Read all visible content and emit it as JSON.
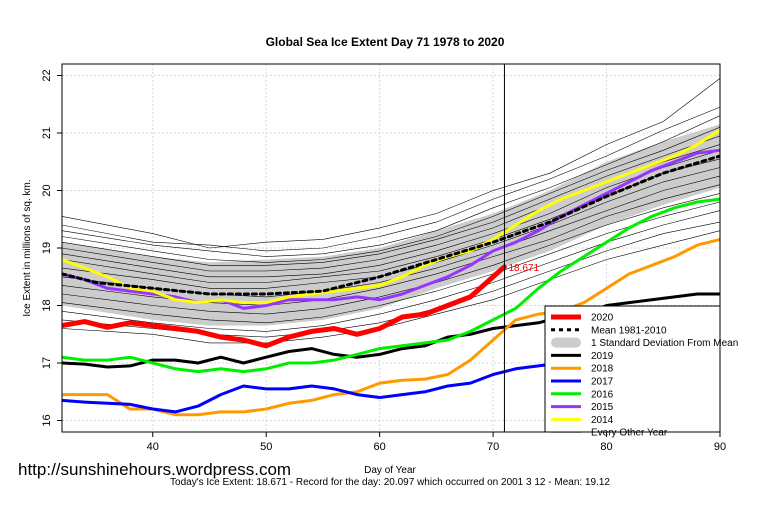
{
  "chart_data": {
    "type": "line",
    "title": "Global Sea Ice Extent Day 71 1978 to 2020",
    "xlabel": "Day of Year",
    "ylabel": "Ice Extent in millions of sq. km.",
    "xlim": [
      32,
      90
    ],
    "ylim": [
      15.8,
      22.2
    ],
    "x_ticks": [
      40,
      50,
      60,
      70,
      80,
      90
    ],
    "y_ticks": [
      16,
      17,
      18,
      19,
      20,
      21,
      22
    ],
    "grid": true,
    "legend_position": "bottom-right",
    "current_day": 71,
    "current_value_label": "18.671",
    "footer": "Today's Ice Extent: 18.671  - Record for the day: 20.097 which occurred on 2001 3 12  - Mean: 19.12",
    "watermark": "http://sunshinehours.wordpress.com",
    "std_band": {
      "name": "1 Standard Deviation From Mean",
      "x": [
        32,
        40,
        45,
        50,
        55,
        60,
        65,
        70,
        75,
        80,
        85,
        90
      ],
      "upper": [
        19.1,
        18.85,
        18.75,
        18.8,
        18.85,
        19.0,
        19.3,
        19.6,
        20.0,
        20.5,
        20.85,
        21.15
      ],
      "lower": [
        18.0,
        17.75,
        17.65,
        17.65,
        17.75,
        17.95,
        18.3,
        18.6,
        18.95,
        19.4,
        19.75,
        20.05
      ],
      "color": "#cccccc"
    },
    "series": [
      {
        "name": "2020",
        "color": "#ff0000",
        "width": 5,
        "x": [
          32,
          34,
          36,
          38,
          40,
          42,
          44,
          46,
          48,
          50,
          52,
          54,
          56,
          58,
          60,
          62,
          64,
          66,
          68,
          70,
          71
        ],
        "values": [
          17.65,
          17.72,
          17.62,
          17.7,
          17.65,
          17.6,
          17.55,
          17.45,
          17.4,
          17.3,
          17.45,
          17.55,
          17.6,
          17.5,
          17.6,
          17.8,
          17.85,
          18.0,
          18.15,
          18.5,
          18.671
        ]
      },
      {
        "name": "Mean 1981-2010",
        "color": "#000000",
        "width": 3,
        "dash": "4,4",
        "x": [
          32,
          35,
          40,
          45,
          50,
          55,
          60,
          65,
          70,
          75,
          80,
          85,
          90
        ],
        "values": [
          18.55,
          18.4,
          18.3,
          18.2,
          18.2,
          18.25,
          18.5,
          18.8,
          19.1,
          19.45,
          19.9,
          20.3,
          20.6
        ]
      },
      {
        "name": "2019",
        "color": "#000000",
        "width": 3,
        "x": [
          32,
          34,
          36,
          38,
          40,
          42,
          44,
          46,
          48,
          50,
          52,
          54,
          56,
          58,
          60,
          62,
          64,
          66,
          68,
          70,
          72,
          74,
          76,
          78,
          80,
          82,
          84,
          86,
          88,
          90
        ],
        "values": [
          17.0,
          16.98,
          16.93,
          16.95,
          17.05,
          17.05,
          17.0,
          17.1,
          17.0,
          17.1,
          17.2,
          17.25,
          17.15,
          17.1,
          17.15,
          17.25,
          17.3,
          17.45,
          17.5,
          17.6,
          17.65,
          17.7,
          17.8,
          17.85,
          18.0,
          18.05,
          18.1,
          18.15,
          18.2,
          18.2
        ]
      },
      {
        "name": "2018",
        "color": "#ff9900",
        "width": 3,
        "x": [
          32,
          34,
          36,
          38,
          40,
          42,
          44,
          46,
          48,
          50,
          52,
          54,
          56,
          58,
          60,
          62,
          64,
          66,
          68,
          70,
          72,
          74,
          76,
          78,
          80,
          82,
          84,
          86,
          88,
          90
        ],
        "values": [
          16.45,
          16.45,
          16.45,
          16.2,
          16.2,
          16.1,
          16.1,
          16.15,
          16.15,
          16.2,
          16.3,
          16.35,
          16.45,
          16.5,
          16.65,
          16.7,
          16.72,
          16.8,
          17.05,
          17.4,
          17.75,
          17.85,
          17.9,
          18.05,
          18.3,
          18.55,
          18.7,
          18.85,
          19.05,
          19.15
        ]
      },
      {
        "name": "2017",
        "color": "#0000ff",
        "width": 3,
        "x": [
          32,
          34,
          36,
          38,
          40,
          42,
          44,
          46,
          48,
          50,
          52,
          54,
          56,
          58,
          60,
          62,
          64,
          66,
          68,
          70,
          72,
          74,
          76,
          78,
          80,
          82,
          84,
          86,
          88,
          90
        ],
        "values": [
          16.35,
          16.32,
          16.3,
          16.28,
          16.2,
          16.15,
          16.25,
          16.45,
          16.6,
          16.55,
          16.55,
          16.6,
          16.55,
          16.45,
          16.4,
          16.45,
          16.5,
          16.6,
          16.65,
          16.8,
          16.9,
          16.95,
          17.0,
          17.05,
          17.1,
          17.2,
          17.35,
          17.5,
          17.65,
          17.75
        ]
      },
      {
        "name": "2016",
        "color": "#00ee00",
        "width": 3,
        "x": [
          32,
          34,
          36,
          38,
          40,
          42,
          44,
          46,
          48,
          50,
          52,
          54,
          56,
          58,
          60,
          62,
          64,
          66,
          68,
          70,
          72,
          74,
          76,
          78,
          80,
          82,
          84,
          86,
          88,
          90
        ],
        "values": [
          17.1,
          17.05,
          17.05,
          17.1,
          17.0,
          16.9,
          16.85,
          16.9,
          16.85,
          16.9,
          17.0,
          17.0,
          17.05,
          17.15,
          17.25,
          17.3,
          17.35,
          17.4,
          17.55,
          17.75,
          17.95,
          18.3,
          18.6,
          18.85,
          19.1,
          19.35,
          19.55,
          19.7,
          19.8,
          19.85
        ]
      },
      {
        "name": "2015",
        "color": "#9933ff",
        "width": 3,
        "x": [
          32,
          34,
          36,
          38,
          40,
          42,
          44,
          46,
          48,
          50,
          52,
          54,
          56,
          58,
          60,
          62,
          64,
          66,
          68,
          70,
          72,
          74,
          76,
          78,
          80,
          82,
          84,
          86,
          88,
          90
        ],
        "values": [
          18.55,
          18.45,
          18.3,
          18.25,
          18.2,
          18.15,
          18.05,
          18.1,
          17.95,
          18.0,
          18.1,
          18.1,
          18.1,
          18.15,
          18.1,
          18.2,
          18.35,
          18.5,
          18.7,
          18.95,
          19.1,
          19.3,
          19.55,
          19.75,
          19.95,
          20.15,
          20.35,
          20.5,
          20.65,
          20.7
        ]
      },
      {
        "name": "2014",
        "color": "#ffff00",
        "width": 3,
        "x": [
          32,
          34,
          36,
          38,
          40,
          42,
          44,
          46,
          48,
          50,
          52,
          54,
          56,
          58,
          60,
          62,
          64,
          66,
          68,
          70,
          72,
          74,
          76,
          78,
          80,
          82,
          84,
          86,
          88,
          90
        ],
        "values": [
          18.8,
          18.65,
          18.5,
          18.3,
          18.25,
          18.1,
          18.05,
          18.1,
          18.05,
          18.05,
          18.15,
          18.2,
          18.25,
          18.3,
          18.35,
          18.5,
          18.7,
          18.85,
          18.95,
          19.15,
          19.4,
          19.65,
          19.85,
          20.0,
          20.15,
          20.3,
          20.45,
          20.6,
          20.8,
          21.05
        ]
      }
    ],
    "other_years": {
      "name": "Every Other Year",
      "color": "#000000",
      "x": [
        32,
        40,
        45,
        50,
        55,
        60,
        65,
        70,
        75,
        80,
        85,
        90
      ],
      "lines": [
        [
          19.55,
          19.25,
          19.0,
          19.1,
          19.15,
          19.35,
          19.6,
          20.0,
          20.3,
          20.8,
          21.2,
          21.95
        ],
        [
          19.4,
          19.1,
          19.05,
          18.95,
          19.0,
          19.2,
          19.45,
          19.85,
          20.2,
          20.6,
          21.05,
          21.45
        ],
        [
          19.3,
          19.05,
          18.95,
          18.85,
          18.9,
          19.05,
          19.3,
          19.7,
          20.05,
          20.45,
          20.85,
          21.3
        ],
        [
          19.2,
          18.95,
          18.8,
          18.75,
          18.8,
          18.95,
          19.2,
          19.55,
          19.95,
          20.35,
          20.7,
          21.1
        ],
        [
          19.1,
          18.85,
          18.7,
          18.7,
          18.75,
          18.9,
          19.15,
          19.45,
          19.85,
          20.25,
          20.6,
          20.95
        ],
        [
          19.0,
          18.75,
          18.6,
          18.6,
          18.65,
          18.8,
          19.05,
          19.35,
          19.75,
          20.15,
          20.5,
          20.8
        ],
        [
          18.9,
          18.65,
          18.5,
          18.5,
          18.55,
          18.7,
          18.95,
          19.25,
          19.6,
          20.05,
          20.4,
          20.7
        ],
        [
          18.8,
          18.55,
          18.4,
          18.4,
          18.5,
          18.6,
          18.85,
          19.15,
          19.5,
          19.9,
          20.3,
          20.55
        ],
        [
          18.65,
          18.45,
          18.3,
          18.3,
          18.4,
          18.5,
          18.75,
          19.05,
          19.4,
          19.8,
          20.15,
          20.4
        ],
        [
          18.5,
          18.3,
          18.2,
          18.15,
          18.25,
          18.4,
          18.65,
          18.95,
          19.3,
          19.65,
          20.0,
          20.25
        ],
        [
          18.35,
          18.15,
          18.05,
          18.0,
          18.1,
          18.3,
          18.55,
          18.85,
          19.15,
          19.55,
          19.85,
          20.1
        ],
        [
          18.2,
          18.0,
          17.9,
          17.85,
          17.95,
          18.15,
          18.4,
          18.7,
          19.05,
          19.4,
          19.7,
          19.95
        ],
        [
          18.05,
          17.85,
          17.75,
          17.7,
          17.8,
          18.0,
          18.25,
          18.55,
          18.9,
          19.25,
          19.55,
          19.8
        ],
        [
          17.9,
          17.7,
          17.6,
          17.55,
          17.65,
          17.85,
          18.1,
          18.4,
          18.75,
          19.1,
          19.4,
          19.65
        ],
        [
          17.75,
          17.6,
          17.5,
          17.45,
          17.55,
          17.7,
          17.95,
          18.25,
          18.6,
          18.95,
          19.25,
          19.45
        ],
        [
          17.6,
          17.5,
          17.35,
          17.35,
          17.45,
          17.6,
          17.85,
          18.1,
          18.45,
          18.8,
          19.05,
          19.3
        ]
      ]
    }
  }
}
